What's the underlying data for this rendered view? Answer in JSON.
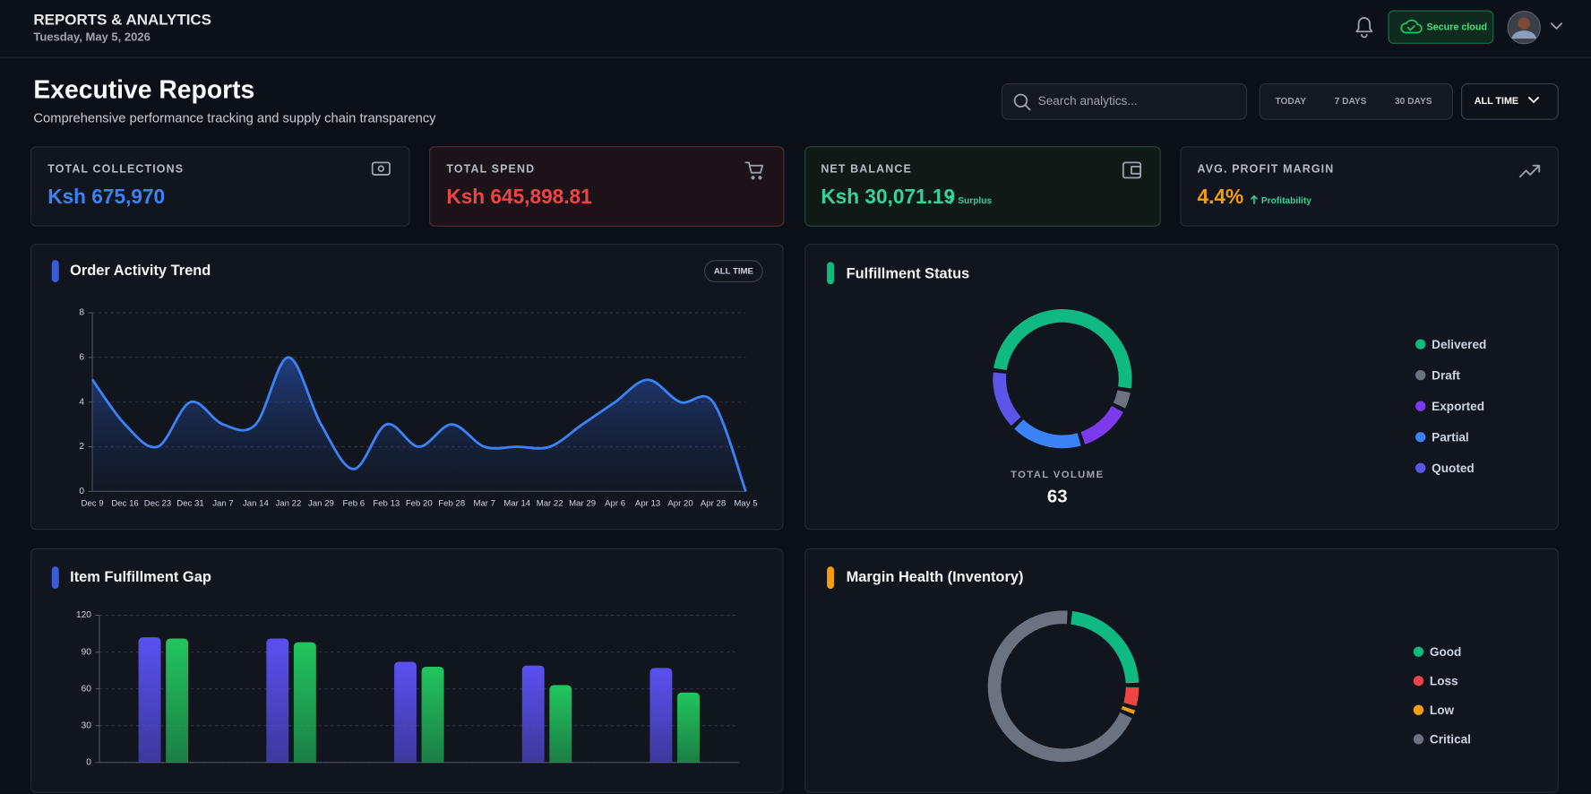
{
  "header": {
    "title": "REPORTS & ANALYTICS",
    "date": "Tuesday, May 5, 2026",
    "badge": "Secure cloud"
  },
  "page": {
    "title": "Executive Reports",
    "subtitle": "Comprehensive performance tracking and supply chain transparency",
    "search_placeholder": "Search analytics...",
    "filters": [
      "TODAY",
      "7 DAYS",
      "30 DAYS",
      "ALL TIME"
    ]
  },
  "kpis": [
    {
      "label": "TOTAL COLLECTIONS",
      "value": "Ksh 675,970"
    },
    {
      "label": "TOTAL SPEND",
      "value": "Ksh 645,898.81"
    },
    {
      "label": "NET BALANCE",
      "value": "Ksh 30,071.19",
      "note": "Surplus"
    },
    {
      "label": "AVG. PROFIT MARGIN",
      "value": "4.4%",
      "note": "Profitability"
    }
  ],
  "chart_data": [
    {
      "type": "line",
      "title": "Order Activity Trend",
      "badge": "ALL TIME",
      "color": "#3b82f6",
      "categories": [
        "Dec 9",
        "Dec 16",
        "Dec 23",
        "Dec 31",
        "Jan 7",
        "Jan 14",
        "Jan 22",
        "Jan 29",
        "Feb 6",
        "Feb 13",
        "Feb 20",
        "Feb 28",
        "Mar 7",
        "Mar 14",
        "Mar 22",
        "Mar 29",
        "Apr 6",
        "Apr 13",
        "Apr 20",
        "Apr 28",
        "May 5"
      ],
      "values": [
        5,
        3,
        2,
        4,
        3,
        3,
        6,
        3,
        1,
        3,
        2,
        3,
        2,
        2,
        2,
        3,
        4,
        5,
        4,
        4,
        0
      ],
      "ylim": [
        0,
        8
      ],
      "yticks": [
        0,
        2,
        4,
        6,
        8
      ],
      "grid": true
    },
    {
      "type": "pie",
      "title": "Fulfillment Status",
      "total_label": "TOTAL VOLUME",
      "total": 63,
      "categories": [
        "Delivered",
        "Draft",
        "Exported",
        "Partial",
        "Quoted"
      ],
      "values": [
        32,
        3,
        8,
        11,
        9
      ],
      "colors": [
        "#10b981",
        "#6b7280",
        "#7c3aed",
        "#3b82f6",
        "#5b55e8"
      ]
    },
    {
      "type": "bar",
      "title": "Item Fulfillment Gap",
      "categories": [
        null,
        null,
        null,
        null,
        null
      ],
      "series": [
        {
          "color": "#5b50f0",
          "values": [
            102,
            101,
            82,
            79,
            77
          ]
        },
        {
          "color": "#22c55e",
          "values": [
            101,
            98,
            78,
            63,
            57
          ]
        }
      ],
      "ylim": [
        0,
        120
      ],
      "yticks": [
        0,
        30,
        60,
        90,
        120
      ],
      "grid": true
    },
    {
      "type": "pie",
      "title": "Margin Health (Inventory)",
      "categories": [
        "Good",
        "Loss",
        "Low",
        "Critical"
      ],
      "values": [
        14,
        3,
        1,
        42
      ],
      "colors": [
        "#10b981",
        "#ef4444",
        "#f59e0b",
        "#6b7280"
      ]
    }
  ]
}
